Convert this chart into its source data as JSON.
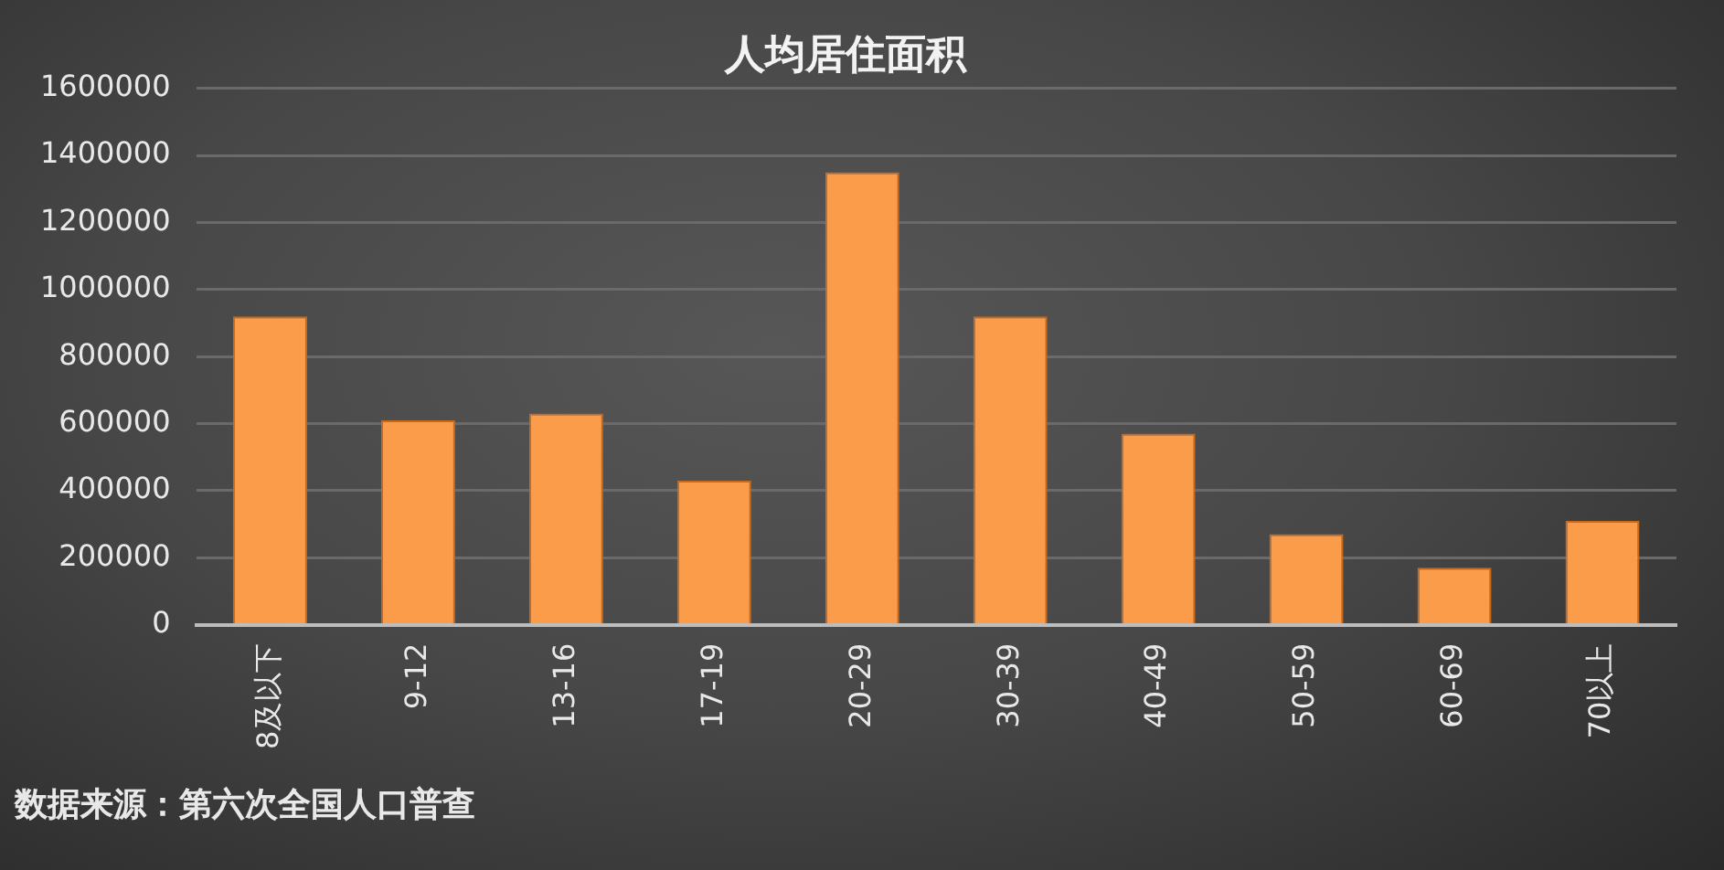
{
  "chart_data": {
    "type": "bar",
    "title": "人均居住面积",
    "categories": [
      "8及以下",
      "9-12",
      "13-16",
      "17-19",
      "20-29",
      "30-39",
      "40-49",
      "50-59",
      "60-69",
      "70以上"
    ],
    "values": [
      920000,
      610000,
      630000,
      430000,
      1350000,
      920000,
      570000,
      270000,
      170000,
      310000
    ],
    "color": "#fb9c4a",
    "ylim": [
      0,
      1600000
    ],
    "yticks": [
      0,
      200000,
      400000,
      600000,
      800000,
      1000000,
      1200000,
      1400000,
      1600000
    ],
    "grid": "y",
    "legend": false,
    "annotations": [
      "数据来源：第六次全国人口普查"
    ]
  }
}
